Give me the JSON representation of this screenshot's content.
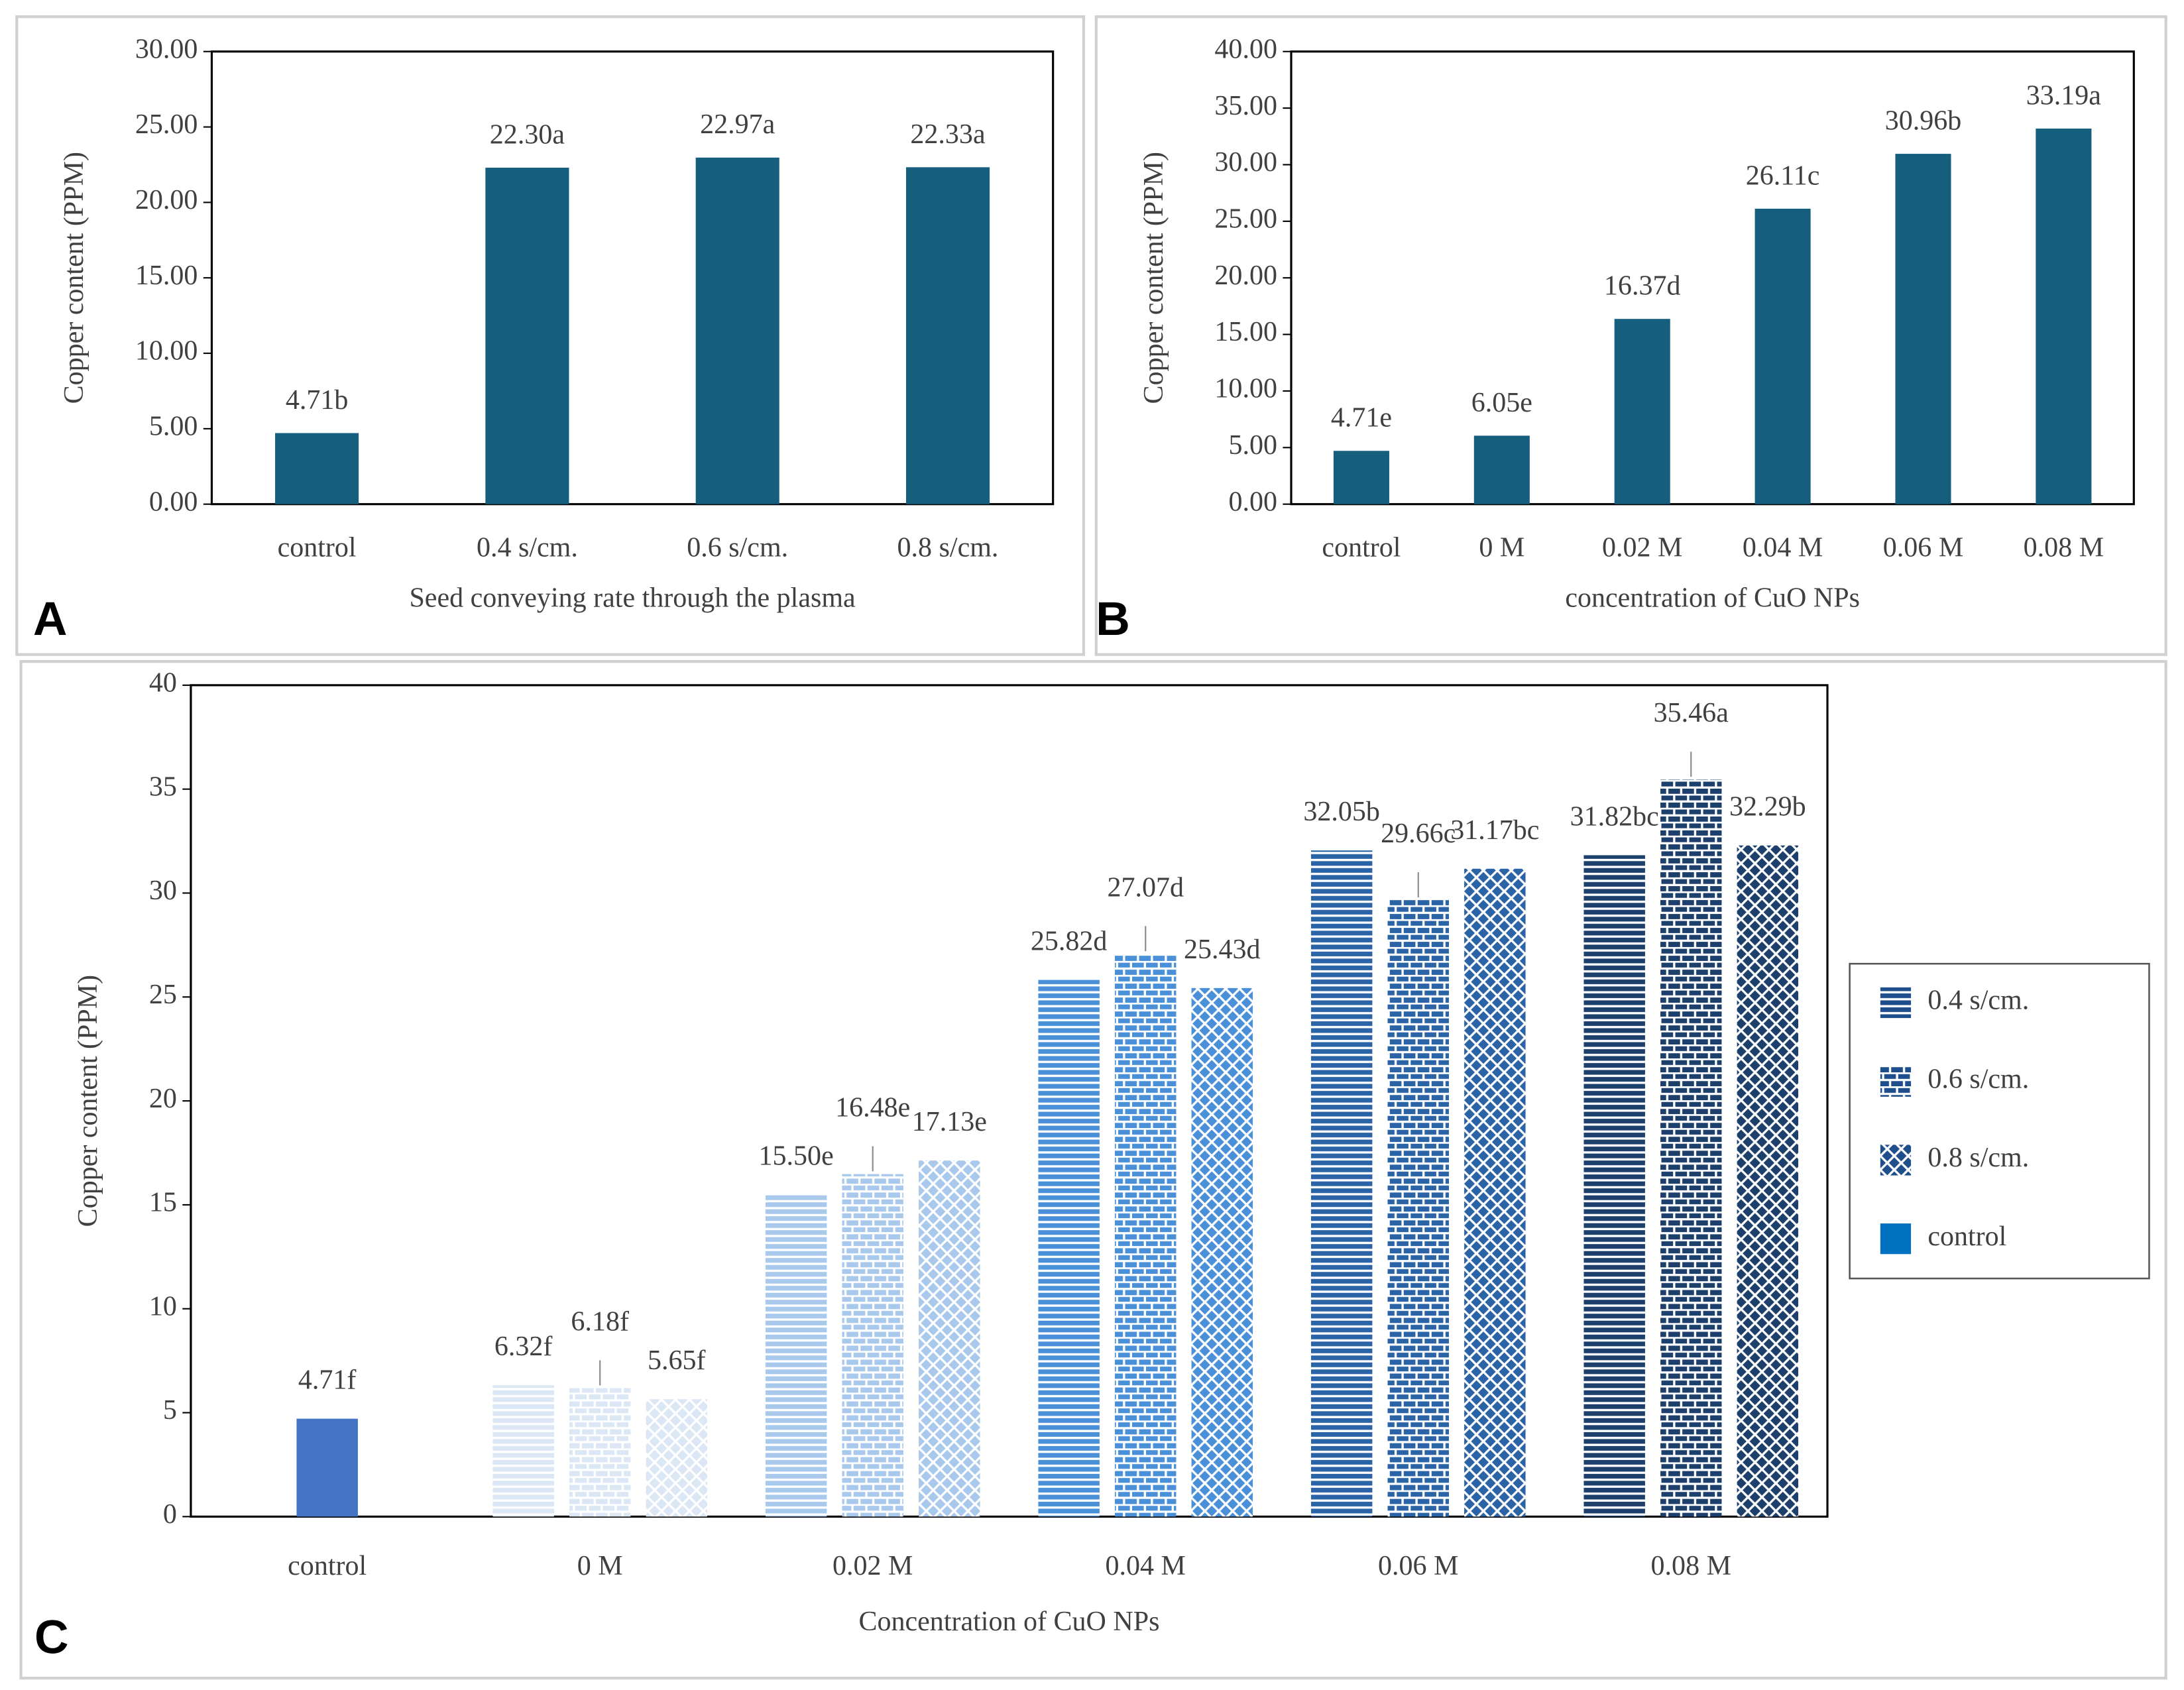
{
  "chart_data": [
    {
      "type": "bar",
      "panel": "A",
      "y_label": "Copper content (PPM)",
      "x_label": "Seed conveying rate through the plasma",
      "categories": [
        "control",
        "0.4 s/cm.",
        "0.6 s/cm.",
        "0.8 s/cm."
      ],
      "values": [
        4.71,
        22.3,
        22.97,
        22.33
      ],
      "value_labels": [
        "4.71b",
        "22.30a",
        "22.97a",
        "22.33a"
      ],
      "color": "#165e7e",
      "ylim": [
        0,
        30
      ],
      "yticks": [
        {
          "value": 0,
          "label": "0.00"
        },
        {
          "value": 5,
          "label": "5.00"
        },
        {
          "value": 10,
          "label": "10.00"
        },
        {
          "value": 15,
          "label": "15.00"
        },
        {
          "value": 20,
          "label": "20.00"
        },
        {
          "value": 25,
          "label": "25.00"
        },
        {
          "value": 30,
          "label": "30.00"
        }
      ]
    },
    {
      "type": "bar",
      "panel": "B",
      "y_label": "Copper content (PPM)",
      "x_label": "concentration of CuO NPs",
      "categories": [
        "control",
        "0 M",
        "0.02 M",
        "0.04 M",
        "0.06 M",
        "0.08 M"
      ],
      "values": [
        4.71,
        6.05,
        16.37,
        26.11,
        30.96,
        33.19
      ],
      "value_labels": [
        "4.71e",
        "6.05e",
        "16.37d",
        "26.11c",
        "30.96b",
        "33.19a"
      ],
      "color": "#165e7e",
      "ylim": [
        0,
        40
      ],
      "yticks": [
        {
          "value": 0,
          "label": "0.00"
        },
        {
          "value": 5,
          "label": "5.00"
        },
        {
          "value": 10,
          "label": "10.00"
        },
        {
          "value": 15,
          "label": "15.00"
        },
        {
          "value": 20,
          "label": "20.00"
        },
        {
          "value": 25,
          "label": "25.00"
        },
        {
          "value": 30,
          "label": "30.00"
        },
        {
          "value": 35,
          "label": "35.00"
        },
        {
          "value": 40,
          "label": "40.00"
        }
      ]
    },
    {
      "type": "grouped_bar",
      "panel": "C",
      "y_label": "Copper content (PPM)",
      "x_label": "Concentration of CuO NPs",
      "categories": [
        "control",
        "0 M",
        "0.02 M",
        "0.04 M",
        "0.06 M",
        "0.08 M"
      ],
      "category_colors": [
        "#4472c4",
        "#dbe7f5",
        "#a8c8ec",
        "#4a90d9",
        "#2a63a6",
        "#1d3f6c"
      ],
      "ylim": [
        0,
        40
      ],
      "yticks": [
        0,
        5,
        10,
        15,
        20,
        25,
        30,
        35,
        40
      ],
      "series": [
        {
          "name": "0.4 s/cm.",
          "pattern": "horizontal",
          "color": "#1f4e8c",
          "values": [
            null,
            6.32,
            15.5,
            25.82,
            32.05,
            31.82
          ],
          "value_labels": [
            null,
            "6.32f",
            "15.50e",
            "25.82d",
            "32.05b",
            "31.82bc"
          ]
        },
        {
          "name": "0.6 s/cm.",
          "pattern": "brick",
          "color": "#1f4e8c",
          "values": [
            null,
            6.18,
            16.48,
            27.07,
            29.66,
            35.46
          ],
          "value_labels": [
            null,
            "6.18f",
            "16.48e",
            "27.07d",
            "29.66c",
            "35.46a"
          ]
        },
        {
          "name": "0.8 s/cm.",
          "pattern": "diamond",
          "color": "#1f4e8c",
          "values": [
            null,
            5.65,
            17.13,
            25.43,
            31.17,
            32.29
          ],
          "value_labels": [
            null,
            "5.65f",
            "17.13e",
            "25.43d",
            "31.17bc",
            "32.29b"
          ]
        },
        {
          "name": "control",
          "pattern": "solid",
          "color": "#0070c0",
          "values": [
            4.71,
            null,
            null,
            null,
            null,
            null
          ],
          "value_labels": [
            "4.71f",
            null,
            null,
            null,
            null,
            null
          ]
        }
      ],
      "legend": "right"
    }
  ]
}
